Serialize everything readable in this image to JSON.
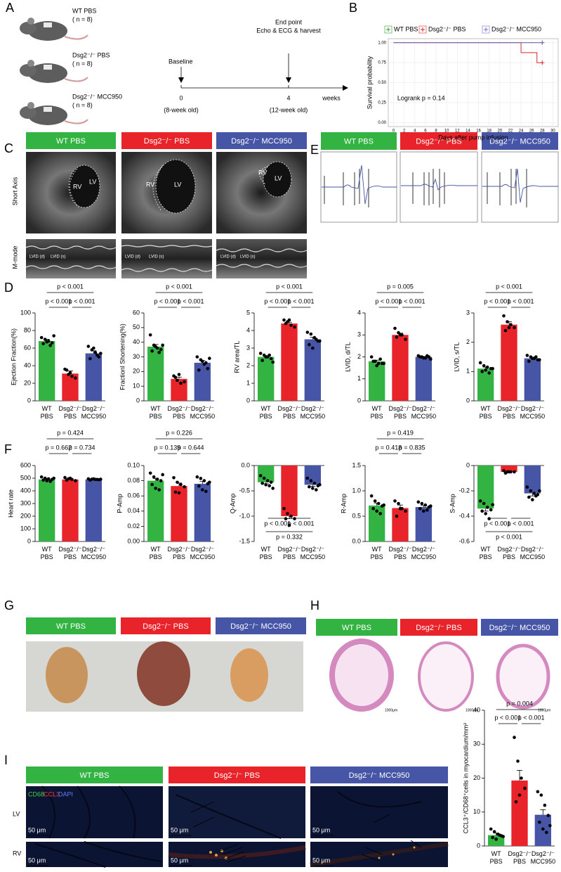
{
  "panel_letters": [
    "A",
    "B",
    "C",
    "D",
    "E",
    "F",
    "G",
    "H",
    "I"
  ],
  "headers": [
    "WT PBS",
    "Dsg2⁻/⁻ PBS",
    "Dsg2⁻/⁻ MCC950"
  ],
  "group_colors": [
    "#33b342",
    "#e8232a",
    "#4655a5"
  ],
  "panel_a": {
    "groups": [
      {
        "name": "WT  PBS",
        "n": "( n = 8)"
      },
      {
        "name": "Dsg2⁻/⁻ PBS",
        "n": "( n = 8)"
      },
      {
        "name": "Dsg2⁻/⁻  MCC950",
        "n": "( n = 8)"
      }
    ],
    "timeline": {
      "baseline": "Baseline",
      "endpoint": "End point",
      "endpoint_detail": "Echo & ECG & harvest",
      "start": "0",
      "end": "4",
      "unit": "weeks",
      "start_age": "(8-week old)",
      "end_age": "(12-week old)"
    }
  },
  "echo": {
    "rows": [
      "Short Axis",
      "M-mode"
    ],
    "rv": "RV",
    "lv": "LV",
    "lvid_d": "LVID (d)",
    "lvid_s": "LVID (s)"
  },
  "histology_scale": "1000μm",
  "fluorescence": {
    "stain": [
      "CD68",
      "CCL3",
      "DAPI"
    ],
    "rows": [
      "LV",
      "RV"
    ],
    "scale": "50 μm"
  },
  "chart_data": [
    {
      "type": "line",
      "xlabel": "Days after pump infusion",
      "ylabel": "Survival probability",
      "annotation": "Logrank p =  0.14",
      "xlim": [
        -1,
        31
      ],
      "ylim": [
        -0.05,
        1.05
      ],
      "xticks": [
        0,
        2,
        4,
        6,
        8,
        10,
        12,
        14,
        16,
        18,
        20,
        22,
        24,
        26,
        28,
        30
      ],
      "yticks": [
        {
          "value": 0,
          "label": "0.00"
        },
        {
          "value": 0.25,
          "label": "0.25"
        },
        {
          "value": 0.5,
          "label": "0.50"
        },
        {
          "value": 0.75,
          "label": "0.75"
        },
        {
          "value": 1,
          "label": "1.00"
        }
      ],
      "series": [
        {
          "name": "WT PBS",
          "color": "#2ca02c",
          "x": [
            0,
            28
          ],
          "values": [
            1,
            1
          ]
        },
        {
          "name": "Dsg2⁻/⁻ PBS",
          "color": "#d62728",
          "x": [
            0,
            24,
            27,
            28
          ],
          "values": [
            1,
            0.875,
            0.75,
            0.75
          ]
        },
        {
          "name": "Dsg2⁻/⁻ MCC950",
          "color": "#7b68c8",
          "x": [
            0,
            28
          ],
          "values": [
            1,
            1
          ]
        }
      ]
    },
    {
      "type": "bar",
      "ylabel": "Ejection Fraction(%)",
      "categories": [
        "WT PBS",
        "Dsg2⁻/⁻ PBS",
        "Dsg2⁻/⁻ MCC950"
      ],
      "colors": [
        "#33b342",
        "#e8232a",
        "#4655a5"
      ],
      "values": [
        68,
        31,
        54
      ],
      "errors": [
        2,
        3,
        3
      ],
      "points": [
        [
          72,
          70,
          68,
          66,
          65,
          67,
          63,
          74
        ],
        [
          36,
          30,
          28,
          26,
          35,
          32
        ],
        [
          62,
          58,
          55,
          50,
          48,
          60,
          52,
          54
        ]
      ],
      "ylim": [
        0,
        100
      ],
      "yticks": [
        0,
        20,
        40,
        60,
        80,
        100
      ],
      "p_values": {
        "all": "p < 0.001",
        "wt_vs_pbs": "p < 0.001",
        "pbs_vs_mcc": "p < 0.001"
      }
    },
    {
      "type": "bar",
      "ylabel": "Fractionl Shortening(%)",
      "categories": [
        "WT PBS",
        "Dsg2⁻/⁻ PBS",
        "Dsg2⁻/⁻ MCC950"
      ],
      "colors": [
        "#33b342",
        "#e8232a",
        "#4655a5"
      ],
      "values": [
        37,
        15,
        26
      ],
      "errors": [
        1.5,
        1.2,
        1.5
      ],
      "points": [
        [
          45,
          38,
          36,
          35,
          34,
          37,
          33,
          38
        ],
        [
          17,
          14,
          12,
          13,
          16,
          18
        ],
        [
          30,
          28,
          25,
          22,
          21,
          27,
          26,
          29
        ]
      ],
      "ylim": [
        0,
        60
      ],
      "yticks": [
        0,
        10,
        20,
        30,
        40,
        50,
        60
      ],
      "p_values": {
        "all": "p < 0.001",
        "wt_vs_pbs": "p < 0.001",
        "pbs_vs_mcc": "p < 0.001"
      }
    },
    {
      "type": "bar",
      "ylabel": "RV area/TL",
      "categories": [
        "WT PBS",
        "Dsg2⁻/⁻ PBS",
        "Dsg2⁻/⁻ MCC950"
      ],
      "colors": [
        "#33b342",
        "#e8232a",
        "#4655a5"
      ],
      "values": [
        2.5,
        4.4,
        3.5
      ],
      "errors": [
        0.07,
        0.07,
        0.12
      ],
      "points": [
        [
          2.7,
          2.6,
          2.5,
          2.4,
          2.3,
          2.5,
          2.6,
          2.2
        ],
        [
          4.6,
          4.5,
          4.3,
          4.2,
          4.4,
          4.6
        ],
        [
          3.9,
          3.8,
          3.6,
          3.4,
          3.2,
          3,
          3.5,
          3.4
        ]
      ],
      "ylim": [
        0,
        5
      ],
      "yticks": [
        0,
        1,
        2,
        3,
        4,
        5
      ],
      "p_values": {
        "all": "p < 0.001",
        "wt_vs_pbs": "p < 0.001",
        "pbs_vs_mcc": "p < 0.001"
      }
    },
    {
      "type": "bar",
      "ylabel": "LVID, d/TL",
      "categories": [
        "WT PBS",
        "Dsg2⁻/⁻ PBS",
        "Dsg2⁻/⁻ MCC950"
      ],
      "colors": [
        "#33b342",
        "#e8232a",
        "#4655a5"
      ],
      "values": [
        1.8,
        3,
        2
      ],
      "errors": [
        0.05,
        0.08,
        0.02
      ],
      "points": [
        [
          2,
          1.8,
          1.7,
          1.7,
          1.8,
          1.6,
          1.9,
          1.7
        ],
        [
          3.3,
          3.1,
          3,
          2.8,
          2.9,
          3
        ],
        [
          2.05,
          2,
          1.95,
          2,
          2,
          1.95,
          2.05,
          1.9
        ]
      ],
      "ylim": [
        0,
        4
      ],
      "yticks": [
        0,
        1,
        2,
        3,
        4
      ],
      "p_values": {
        "all": "p = 0.005",
        "wt_vs_pbs": "p < 0.001",
        "pbs_vs_mcc": "p < 0.001"
      }
    },
    {
      "type": "bar",
      "ylabel": "LVID, s/TL",
      "categories": [
        "WT PBS",
        "Dsg2⁻/⁻ PBS",
        "Dsg2⁻/⁻ MCC950"
      ],
      "colors": [
        "#33b342",
        "#e8232a",
        "#4655a5"
      ],
      "values": [
        1.1,
        2.6,
        1.45
      ],
      "errors": [
        0.05,
        0.1,
        0.04
      ],
      "points": [
        [
          1.3,
          1.2,
          1.15,
          1.1,
          1,
          1.05,
          0.95,
          1.1
        ],
        [
          2.9,
          2.7,
          2.6,
          2.5,
          2.4,
          2.5
        ],
        [
          1.55,
          1.5,
          1.45,
          1.4,
          1.35,
          1.45,
          1.5,
          1.4
        ]
      ],
      "ylim": [
        0,
        3
      ],
      "yticks": [
        0,
        1,
        2,
        3
      ],
      "p_values": {
        "all": "p < 0.001",
        "wt_vs_pbs": "p < 0.001",
        "pbs_vs_mcc": "p < 0.001"
      }
    },
    {
      "type": "bar",
      "ylabel": "Heart rate",
      "categories": [
        "WT PBS",
        "Dsg2⁻/⁻ PBS",
        "Dsg2⁻/⁻ MCC950"
      ],
      "colors": [
        "#33b342",
        "#e8232a",
        "#4655a5"
      ],
      "values": [
        490,
        490,
        490
      ],
      "errors": [
        8,
        5,
        2
      ],
      "points": [
        [
          510,
          500,
          495,
          490,
          485,
          480,
          475,
          500
        ],
        [
          505,
          495,
          490,
          480,
          485,
          500
        ],
        [
          495,
          492,
          490,
          488,
          485,
          495,
          490,
          492
        ]
      ],
      "ylim": [
        0,
        600
      ],
      "yticks": [
        0,
        100,
        200,
        300,
        400,
        500,
        600
      ],
      "p_values": {
        "all": "p = 0.424",
        "wt_vs_pbs": "p = 0.662",
        "pbs_vs_mcc": "p = 0.734"
      }
    },
    {
      "type": "bar",
      "ylabel": "P-Amp",
      "categories": [
        "WT PBS",
        "Dsg2⁻/⁻ PBS",
        "Dsg2⁻/⁻ MCC950"
      ],
      "colors": [
        "#33b342",
        "#e8232a",
        "#4655a5"
      ],
      "values": [
        0.08,
        0.073,
        0.076
      ],
      "errors": [
        0.003,
        0.004,
        0.003
      ],
      "points": [
        [
          0.09,
          0.085,
          0.082,
          0.08,
          0.075,
          0.07,
          0.068,
          0.088
        ],
        [
          0.084,
          0.078,
          0.075,
          0.072,
          0.065,
          0.064
        ],
        [
          0.085,
          0.083,
          0.08,
          0.076,
          0.073,
          0.068,
          0.066,
          0.078
        ]
      ],
      "ylim": [
        0,
        0.1
      ],
      "yticks": [
        {
          "value": 0,
          "label": "0.00"
        },
        {
          "value": 0.02,
          "label": "0.02"
        },
        {
          "value": 0.04,
          "label": "0.04"
        },
        {
          "value": 0.06,
          "label": "0.06"
        },
        {
          "value": 0.08,
          "label": "0.08"
        },
        {
          "value": 0.1,
          "label": "0.10"
        }
      ],
      "p_values": {
        "all": "p = 0.226",
        "wt_vs_pbs": "p = 0.139",
        "pbs_vs_mcc": "p = 0.644"
      }
    },
    {
      "type": "bar",
      "ylabel": "Q-Amp",
      "categories": [
        "WT PBS",
        "Dsg2⁻/⁻ PBS",
        "Dsg2⁻/⁻ MCC950"
      ],
      "colors": [
        "#33b342",
        "#e8232a",
        "#4655a5"
      ],
      "values": [
        -0.33,
        -1,
        -0.38
      ],
      "errors": [
        0.03,
        0.05,
        0.03
      ],
      "points": [
        [
          -0.2,
          -0.25,
          -0.3,
          -0.33,
          -0.35,
          -0.38,
          -0.4,
          -0.45
        ],
        [
          -0.85,
          -0.95,
          -1,
          -1.05,
          -1.05,
          -1.18
        ],
        [
          -0.25,
          -0.3,
          -0.35,
          -0.4,
          -0.42,
          -0.45,
          -0.48,
          -0.38
        ]
      ],
      "ylim": [
        -1.5,
        0
      ],
      "yticks": [
        -1.5,
        {
          "value": -1,
          "label": "-1.0"
        },
        -0.5,
        {
          "value": 0,
          "label": "0.0"
        }
      ],
      "p_values": {
        "all": "p = 0.332",
        "wt_vs_pbs": "p < 0.001",
        "pbs_vs_mcc": "p < 0.001"
      }
    },
    {
      "type": "bar",
      "ylabel": "R-Amp",
      "categories": [
        "WT PBS",
        "Dsg2⁻/⁻ PBS",
        "Dsg2⁻/⁻ MCC950"
      ],
      "colors": [
        "#33b342",
        "#e8232a",
        "#4655a5"
      ],
      "values": [
        0.71,
        0.66,
        0.68
      ],
      "errors": [
        0.05,
        0.06,
        0.03
      ],
      "points": [
        [
          0.9,
          0.8,
          0.75,
          0.7,
          0.65,
          0.6,
          0.55,
          0.72
        ],
        [
          0.8,
          0.75,
          0.65,
          0.6,
          0.5,
          0.65
        ],
        [
          0.78,
          0.75,
          0.72,
          0.68,
          0.65,
          0.6,
          0.62,
          0.7
        ]
      ],
      "ylim": [
        0,
        1.5
      ],
      "yticks": [
        {
          "value": 0,
          "label": "0.0"
        },
        0.5,
        {
          "value": 1,
          "label": "1.0"
        },
        1.5
      ],
      "p_values": {
        "all": "p = 0.419",
        "wt_vs_pbs": "p = 0.418",
        "pbs_vs_mcc": "p = 0.835"
      }
    },
    {
      "type": "bar",
      "ylabel": "S-Amp",
      "categories": [
        "WT PBS",
        "Dsg2⁻/⁻ PBS",
        "Dsg2⁻/⁻ MCC950"
      ],
      "colors": [
        "#33b342",
        "#e8232a",
        "#4655a5"
      ],
      "values": [
        -0.34,
        -0.05,
        -0.22
      ],
      "errors": [
        0.02,
        0.003,
        0.02
      ],
      "points": [
        [
          -0.28,
          -0.3,
          -0.33,
          -0.35,
          -0.36,
          -0.38,
          -0.42,
          -0.31
        ],
        [
          -0.04,
          -0.05,
          -0.05,
          -0.05,
          -0.06,
          -0.05
        ],
        [
          -0.17,
          -0.2,
          -0.22,
          -0.23,
          -0.25,
          -0.27,
          -0.24,
          -0.2
        ]
      ],
      "ylim": [
        -0.6,
        0
      ],
      "yticks": [
        -0.6,
        -0.4,
        -0.2,
        0
      ],
      "p_values": {
        "all": "p < 0.001",
        "wt_vs_pbs": "p < 0.001",
        "pbs_vs_mcc": "p < 0.001"
      }
    },
    {
      "type": "bar",
      "ylabel": "CCL3⁺/CD68⁺cells in myocardium/mm²",
      "categories": [
        "WT PBS",
        "Dsg2⁻/⁻ PBS",
        "Dsg2⁻/⁻ MCC950"
      ],
      "colors": [
        "#33b342",
        "#e8232a",
        "#4655a5"
      ],
      "values": [
        3.2,
        19.3,
        9.2
      ],
      "errors": [
        0.6,
        3,
        1.5
      ],
      "points": [
        [
          5,
          4.2,
          3.5,
          3,
          2.5,
          2,
          3.2,
          2.8
        ],
        [
          32,
          25,
          20,
          17,
          13,
          15
        ],
        [
          16,
          15,
          12,
          9,
          7,
          5,
          4,
          6
        ]
      ],
      "ylim": [
        0,
        40
      ],
      "yticks": [
        0,
        10,
        20,
        30,
        40
      ],
      "p_values": {
        "all": "p = 0.004",
        "wt_vs_pbs": "p < 0.001",
        "pbs_vs_mcc": "p < 0.001"
      }
    }
  ]
}
